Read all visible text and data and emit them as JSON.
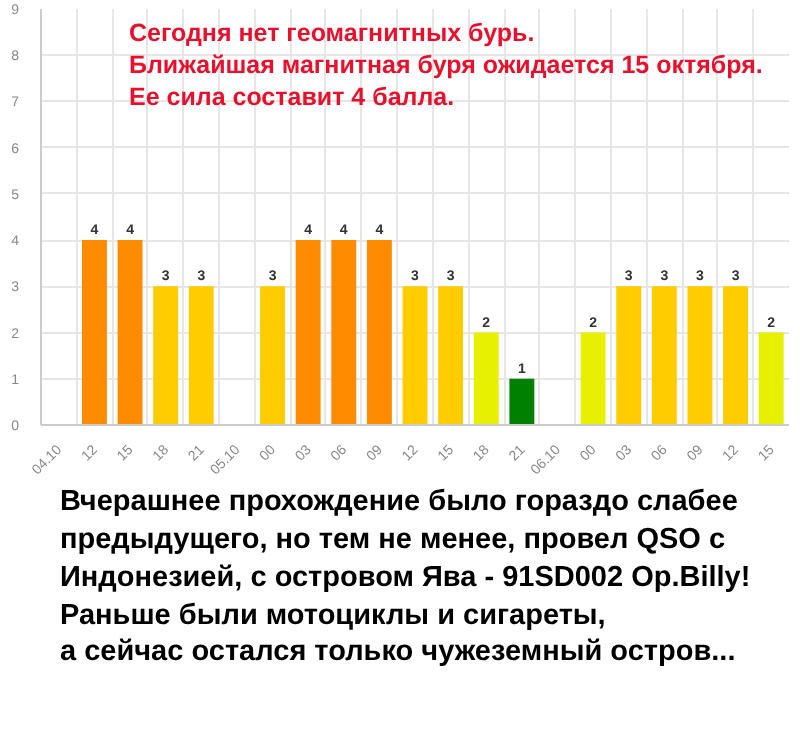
{
  "chart_data": {
    "type": "bar",
    "categories": [
      "04.10",
      "12",
      "15",
      "18",
      "21",
      "05.10",
      "00",
      "03",
      "06",
      "09",
      "12",
      "15",
      "18",
      "21",
      "06.10",
      "00",
      "03",
      "06",
      "09",
      "12",
      "15"
    ],
    "values": [
      null,
      4,
      4,
      3,
      3,
      null,
      3,
      4,
      4,
      4,
      3,
      3,
      2,
      1,
      null,
      2,
      3,
      3,
      3,
      3,
      2
    ],
    "colors": [
      null,
      "#ff8c00",
      "#ff8c00",
      "#ffcc00",
      "#ffcc00",
      null,
      "#ffcc00",
      "#ff8c00",
      "#ff8c00",
      "#ff8c00",
      "#ffcc00",
      "#ffcc00",
      "#e6f000",
      "#008000",
      null,
      "#e6f000",
      "#ffcc00",
      "#ffcc00",
      "#ffcc00",
      "#ffcc00",
      "#e6f000"
    ],
    "ylim": [
      0,
      9
    ],
    "yticks": [
      0,
      1,
      2,
      3,
      4,
      5,
      6,
      7,
      8,
      9
    ],
    "grid": true,
    "data_labels": true,
    "annotations": [
      "Сегодня нет геомагнитных бурь.\nБлижайшая магнитная буря ожидается 15 октября.\nЕе сила составит 4 балла.",
      "Вчерашнее прохождение было гораздо слабее\nпредыдущего, но тем не менее, провел QSO с\nИндонезией, с островом Ява - 91SD002 Op.Billy!\nРаньше были мотоциклы и сигареты,\nа сейчас остался только чужеземный остров..."
    ]
  }
}
